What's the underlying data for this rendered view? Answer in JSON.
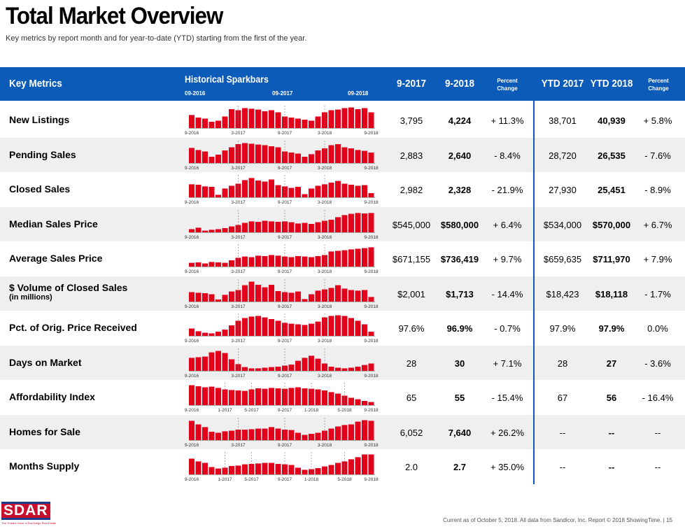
{
  "title": "Total Market Overview",
  "subtitle": "Key metrics by report month and for year-to-date (YTD) starting from the first of the year.",
  "header": {
    "key_metrics": "Key Metrics",
    "historical": "Historical Sparkbars",
    "marks": [
      "09-2016",
      "09-2017",
      "09-2018"
    ],
    "col1": "9-2017",
    "col2": "9-2018",
    "pct1_a": "Percent",
    "pct1_b": "Change",
    "col3": "YTD 2017",
    "col4": "YTD 2018",
    "pct2_a": "Percent",
    "pct2_b": "Change"
  },
  "axis_labels_a": [
    "9-2016",
    "3-2017",
    "9-2017",
    "3-2018",
    "9-2018"
  ],
  "axis_labels_b": [
    "9-2016",
    "1-2017",
    "5-2017",
    "9-2017",
    "1-2018",
    "5-2018",
    "9-2018"
  ],
  "accent_color": "#e2001a",
  "header_color": "#0d5bb8",
  "rows": [
    {
      "metric": "New Listings",
      "sub": "",
      "v1": "3,795",
      "v2": "4,224",
      "p1": "+ 11.3%",
      "v3": "38,701",
      "v4": "40,939",
      "p2": "+ 5.8%",
      "axis": "a",
      "bars": [
        0.62,
        0.5,
        0.45,
        0.3,
        0.35,
        0.55,
        0.9,
        0.85,
        0.95,
        0.92,
        0.88,
        0.8,
        0.85,
        0.75,
        0.55,
        0.5,
        0.45,
        0.4,
        0.35,
        0.55,
        0.75,
        0.85,
        0.88,
        0.95,
        0.98,
        0.9,
        0.95,
        0.75
      ]
    },
    {
      "metric": "Pending Sales",
      "sub": "",
      "v1": "2,883",
      "v2": "2,640",
      "p1": "- 8.4%",
      "v3": "28,720",
      "v4": "26,535",
      "p2": "- 7.6%",
      "axis": "a",
      "bars": [
        0.72,
        0.62,
        0.55,
        0.3,
        0.4,
        0.6,
        0.75,
        0.9,
        0.95,
        0.92,
        0.88,
        0.85,
        0.8,
        0.75,
        0.55,
        0.5,
        0.45,
        0.3,
        0.42,
        0.6,
        0.7,
        0.85,
        0.9,
        0.75,
        0.7,
        0.62,
        0.58,
        0.5
      ]
    },
    {
      "metric": "Closed Sales",
      "sub": "",
      "v1": "2,982",
      "v2": "2,328",
      "p1": "- 21.9%",
      "v3": "27,930",
      "v4": "25,451",
      "p2": "- 8.9%",
      "axis": "a",
      "bars": [
        0.62,
        0.6,
        0.52,
        0.5,
        0.12,
        0.42,
        0.55,
        0.65,
        0.82,
        0.92,
        0.8,
        0.75,
        0.85,
        0.58,
        0.52,
        0.45,
        0.5,
        0.15,
        0.42,
        0.55,
        0.62,
        0.7,
        0.78,
        0.65,
        0.6,
        0.55,
        0.58,
        0.2
      ]
    },
    {
      "metric": "Median Sales Price",
      "sub": "",
      "v1": "$545,000",
      "v2": "$580,000",
      "p1": "+ 6.4%",
      "v3": "$534,000",
      "v4": "$570,000",
      "p2": "+ 6.7%",
      "axis": "a",
      "bars": [
        0.15,
        0.22,
        0.08,
        0.12,
        0.15,
        0.2,
        0.28,
        0.35,
        0.45,
        0.52,
        0.5,
        0.55,
        0.52,
        0.5,
        0.52,
        0.48,
        0.42,
        0.45,
        0.4,
        0.48,
        0.55,
        0.6,
        0.72,
        0.82,
        0.88,
        0.92,
        0.9,
        0.92
      ]
    },
    {
      "metric": "Average Sales Price",
      "sub": "",
      "v1": "$671,155",
      "v2": "$736,419",
      "p1": "+ 9.7%",
      "v3": "$659,635",
      "v4": "$711,970",
      "p2": "+ 7.9%",
      "axis": "a",
      "bars": [
        0.18,
        0.2,
        0.15,
        0.22,
        0.2,
        0.18,
        0.3,
        0.42,
        0.48,
        0.45,
        0.52,
        0.5,
        0.55,
        0.52,
        0.48,
        0.45,
        0.5,
        0.48,
        0.45,
        0.5,
        0.55,
        0.72,
        0.75,
        0.78,
        0.82,
        0.85,
        0.88,
        0.92
      ]
    },
    {
      "metric": "$ Volume of Closed Sales",
      "sub": "(in millions)",
      "v1": "$2,001",
      "v2": "$1,713",
      "p1": "- 14.4%",
      "v3": "$18,423",
      "v4": "$18,118",
      "p2": "- 1.7%",
      "axis": "a",
      "bars": [
        0.45,
        0.42,
        0.4,
        0.35,
        0.1,
        0.32,
        0.48,
        0.55,
        0.78,
        0.95,
        0.8,
        0.68,
        0.8,
        0.5,
        0.45,
        0.42,
        0.48,
        0.12,
        0.35,
        0.52,
        0.58,
        0.65,
        0.78,
        0.62,
        0.55,
        0.52,
        0.55,
        0.22
      ]
    },
    {
      "metric": "Pct. of Orig. Price Received",
      "sub": "",
      "v1": "97.6%",
      "v2": "96.9%",
      "p1": "- 0.7%",
      "v3": "97.9%",
      "v4": "97.9%",
      "p2": "0.0%",
      "axis": "a",
      "bars": [
        0.35,
        0.22,
        0.15,
        0.12,
        0.2,
        0.3,
        0.5,
        0.72,
        0.85,
        0.92,
        0.95,
        0.88,
        0.8,
        0.72,
        0.62,
        0.58,
        0.55,
        0.52,
        0.58,
        0.68,
        0.88,
        0.95,
        0.98,
        0.95,
        0.85,
        0.72,
        0.55,
        0.2
      ]
    },
    {
      "metric": "Days on Market",
      "sub": "",
      "v1": "28",
      "v2": "30",
      "p1": "+ 7.1%",
      "v3": "28",
      "v4": "27",
      "p2": "- 3.6%",
      "axis": "a",
      "bars": [
        0.62,
        0.65,
        0.68,
        0.88,
        0.95,
        0.85,
        0.55,
        0.32,
        0.18,
        0.12,
        0.12,
        0.15,
        0.18,
        0.2,
        0.25,
        0.3,
        0.48,
        0.62,
        0.72,
        0.58,
        0.35,
        0.2,
        0.15,
        0.12,
        0.15,
        0.2,
        0.28,
        0.35
      ]
    },
    {
      "metric": "Affordability Index",
      "sub": "",
      "v1": "65",
      "v2": "55",
      "p1": "- 15.4%",
      "v3": "67",
      "v4": "56",
      "p2": "- 16.4%",
      "axis": "b",
      "bars": [
        0.95,
        0.9,
        0.85,
        0.88,
        0.82,
        0.75,
        0.72,
        0.7,
        0.68,
        0.75,
        0.8,
        0.78,
        0.82,
        0.8,
        0.78,
        0.82,
        0.85,
        0.8,
        0.78,
        0.75,
        0.7,
        0.62,
        0.55,
        0.45,
        0.35,
        0.28,
        0.2,
        0.15
      ]
    },
    {
      "metric": "Homes for Sale",
      "sub": "",
      "v1": "6,052",
      "v2": "7,640",
      "p1": "+ 26.2%",
      "v3": "--",
      "v4": "--",
      "p2": "--",
      "axis": "a",
      "bars": [
        0.92,
        0.75,
        0.62,
        0.4,
        0.35,
        0.42,
        0.45,
        0.5,
        0.5,
        0.52,
        0.55,
        0.55,
        0.62,
        0.55,
        0.5,
        0.48,
        0.35,
        0.25,
        0.3,
        0.35,
        0.45,
        0.55,
        0.65,
        0.72,
        0.75,
        0.88,
        0.95,
        0.92
      ]
    },
    {
      "metric": "Months Supply",
      "sub": "",
      "v1": "2.0",
      "v2": "2.7",
      "p1": "+ 35.0%",
      "v3": "--",
      "v4": "--",
      "p2": "--",
      "axis": "b",
      "bars": [
        0.75,
        0.62,
        0.55,
        0.35,
        0.28,
        0.32,
        0.4,
        0.42,
        0.48,
        0.5,
        0.52,
        0.55,
        0.55,
        0.5,
        0.48,
        0.45,
        0.32,
        0.22,
        0.25,
        0.3,
        0.38,
        0.45,
        0.55,
        0.62,
        0.72,
        0.82,
        0.95,
        0.95
      ]
    }
  ],
  "footer": "Current as of October 5, 2018. All data from Sandicor, Inc. Report © 2018 ShowingTime.  |  15",
  "logo": {
    "text": "SDAR",
    "tagline": "The Trusted Voice of San Diego Real Estate"
  }
}
